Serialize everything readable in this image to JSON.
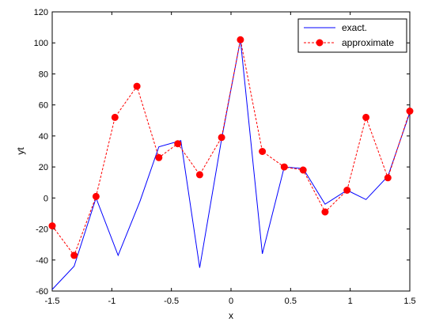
{
  "chart_data": {
    "type": "line",
    "xlabel": "x",
    "ylabel": "yt",
    "xlim": [
      -1.5,
      1.5
    ],
    "ylim": [
      -60,
      120
    ],
    "xticks": [
      -1.5,
      -1,
      -0.5,
      0,
      0.5,
      1,
      1.5
    ],
    "xtick_labels": [
      "-1.5",
      "-1",
      "-0.5",
      "0",
      "0.5",
      "1",
      "1.5"
    ],
    "yticks": [
      -60,
      -40,
      -20,
      0,
      20,
      40,
      60,
      80,
      100,
      120
    ],
    "ytick_labels": [
      "-60",
      "-40",
      "-20",
      "0",
      "20",
      "40",
      "60",
      "80",
      "100",
      "120"
    ],
    "grid": false,
    "legend_position": "top-right",
    "x": [
      -1.5,
      -1.3158,
      -1.1316,
      -0.9474,
      -0.7632,
      -0.5789,
      -0.3947,
      -0.2105,
      -0.0263,
      0.1579,
      0.3421,
      0.5263,
      0.7105,
      0.8947,
      1.0789,
      1.2632,
      1.4474,
      1.5
    ],
    "series": [
      {
        "name": "exact.",
        "color": "#0000ff",
        "style": "solid",
        "marker": "none",
        "x": [
          -1.5,
          -1.316,
          -1.132,
          -0.947,
          -0.763,
          -0.605,
          -0.421,
          -0.263,
          -0.079,
          0.079,
          0.263,
          0.447,
          0.605,
          0.789,
          0.974,
          1.132,
          1.316,
          1.5
        ],
        "values": [
          -59,
          -44,
          0,
          -37,
          -2,
          33,
          37,
          -45,
          38,
          102,
          -36,
          20,
          19,
          -4,
          5,
          -1,
          14,
          55
        ]
      },
      {
        "name": "approximate",
        "color": "#ff0000",
        "style": "dashed",
        "marker": "circle",
        "x": [
          -1.5,
          -1.316,
          -1.132,
          -0.974,
          -0.789,
          -0.605,
          -0.447,
          -0.263,
          -0.079,
          0.079,
          0.263,
          0.447,
          0.605,
          0.789,
          0.974,
          1.132,
          1.316,
          1.5
        ],
        "values": [
          -18,
          -37,
          1,
          52,
          72,
          26,
          35,
          15,
          39,
          102,
          30,
          20,
          18,
          -9,
          5,
          52,
          13,
          56
        ]
      }
    ]
  }
}
